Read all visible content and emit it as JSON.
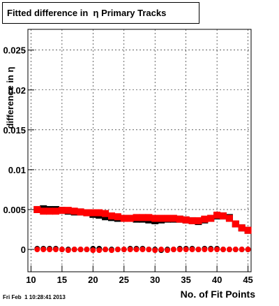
{
  "chart_data": {
    "type": "scatter",
    "title": "Fitted difference in  η Primary Tracks",
    "y_label": "difference in η",
    "x_label": "No. of Fit Points",
    "footnote": "Fri Feb  1 10:28:41 2013",
    "x": [
      11,
      12,
      13,
      14,
      15,
      16,
      17,
      18,
      19,
      20,
      21,
      22,
      23,
      24,
      25,
      26,
      27,
      28,
      29,
      30,
      31,
      32,
      33,
      34,
      35,
      36,
      37,
      38,
      39,
      40,
      41,
      42,
      43,
      44,
      45
    ],
    "series": [
      {
        "color": "#000000",
        "marker": "square",
        "values": [
          0.005,
          0.0051,
          0.005,
          0.005,
          0.0049,
          0.0048,
          0.0047,
          0.0047,
          0.0046,
          0.0044,
          0.0043,
          0.0041,
          0.004,
          0.0039,
          0.0039,
          0.0039,
          0.0038,
          0.0038,
          0.0037,
          0.0036,
          0.0037,
          0.0038,
          0.0038,
          0.0038,
          0.0037,
          0.0036,
          0.0035,
          0.0037,
          0.0039,
          0.0042,
          0.0042,
          0.004,
          0.0032,
          0.0027,
          0.0024
        ]
      },
      {
        "color": "#ff0000",
        "marker": "square",
        "values": [
          0.005,
          0.0048,
          0.0048,
          0.0048,
          0.0049,
          0.0049,
          0.0048,
          0.0047,
          0.0046,
          0.0046,
          0.0046,
          0.0045,
          0.0042,
          0.0041,
          0.0039,
          0.0039,
          0.004,
          0.004,
          0.004,
          0.0039,
          0.0039,
          0.0039,
          0.0039,
          0.0038,
          0.0037,
          0.0036,
          0.0036,
          0.0038,
          0.0039,
          0.0043,
          0.0042,
          0.0039,
          0.0032,
          0.0027,
          0.0024
        ]
      },
      {
        "color": "#000000",
        "marker": "circle",
        "values": [
          0.0001,
          0.0001,
          0.0001,
          0.0001,
          0.0,
          0.0,
          0.0,
          0.0,
          0.0,
          0.0001,
          0.0001,
          0.0,
          0.0,
          0.0,
          0.0,
          0.0001,
          0.0001,
          0.0001,
          0.0,
          0.0,
          -0.0001,
          0.0,
          0.0,
          0.0001,
          0.0001,
          0.0001,
          0.0,
          0.0001,
          0.0001,
          0.0001,
          0.0,
          0.0,
          0.0,
          0.0,
          0.0
        ]
      },
      {
        "color": "#ff0000",
        "marker": "circle",
        "values": [
          0.0,
          0.0,
          0.0,
          0.0,
          0.0,
          -0.0001,
          0.0,
          0.0,
          0.0,
          -0.0001,
          -0.0001,
          0.0,
          -0.0001,
          0.0,
          0.0,
          0.0,
          0.0,
          0.0,
          0.0,
          -0.0001,
          0.0,
          -0.0001,
          0.0,
          0.0,
          0.0,
          0.0,
          0.0,
          0.0,
          0.0,
          0.0,
          0.0,
          0.0,
          0.0,
          0.0,
          0.0
        ]
      }
    ],
    "xlim": [
      9.5,
      45.5
    ],
    "xticks": [
      10,
      15,
      20,
      25,
      30,
      35,
      40,
      45
    ],
    "ylim": [
      -0.0028,
      0.0276
    ],
    "yticks": [
      0,
      0.005,
      0.01,
      0.015,
      0.02,
      0.025
    ],
    "grid": true
  }
}
